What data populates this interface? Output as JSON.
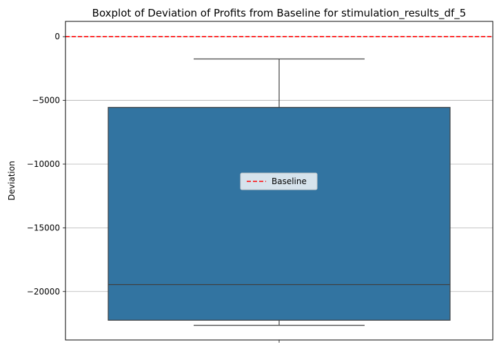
{
  "chart_data": {
    "type": "box",
    "title": "Boxplot of Deviation of Profits from Baseline for stimulation_results_df_5",
    "xlabel": "",
    "ylabel": "Deviation",
    "ylim": [
      -23800,
      1200
    ],
    "y_ticks": [
      0,
      -5000,
      -10000,
      -15000,
      -20000
    ],
    "y_tick_labels": [
      "0",
      "−5000",
      "−10000",
      "−15000",
      "−20000"
    ],
    "grid": "horizontal",
    "box": {
      "whisker_low": -22650,
      "q1": -22250,
      "median": -19450,
      "q3": -5550,
      "whisker_high": -1750,
      "color": "#3274a1",
      "edge_color": "#3f3f3f"
    },
    "baseline": {
      "value": 0,
      "label": "Baseline",
      "color": "#ff0000"
    },
    "legend": {
      "placement": "center",
      "entries": [
        "Baseline"
      ]
    }
  }
}
